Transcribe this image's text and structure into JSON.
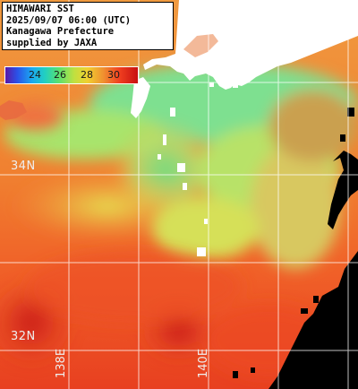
{
  "caption": {
    "line1": "HIMAWARI SST",
    "line2": "2025/09/07 06:00 (UTC)",
    "line3": "Kanagawa Prefecture",
    "line4": "supplied by JAXA"
  },
  "colorbar": {
    "ticks": [
      "24",
      "26",
      "28",
      "30"
    ]
  },
  "graticule": {
    "lat_labels": [
      "34N",
      "32N"
    ],
    "lon_labels": [
      "138E",
      "140E"
    ]
  },
  "colors": {
    "land": "#ffffff",
    "no_data": "#000000",
    "grid": "#ffffff",
    "warm_sst": "#f05020",
    "cool_sst": "#8ce07a"
  }
}
